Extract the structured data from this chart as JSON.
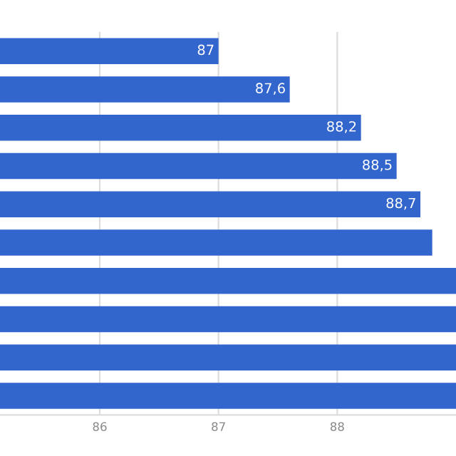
{
  "chart_data": {
    "type": "bar",
    "orientation": "horizontal",
    "categories": [
      null,
      null,
      null,
      null,
      null,
      null,
      null,
      null,
      null,
      null
    ],
    "values": [
      87,
      87.6,
      88.2,
      88.5,
      88.7,
      88.8,
      89,
      89,
      89,
      89
    ],
    "value_labels": [
      "87",
      "87,6",
      "88,2",
      "88,5",
      "88,7",
      null,
      null,
      null,
      null,
      null
    ],
    "color": "#3366cc",
    "xlim": [
      85.16,
      89
    ],
    "xticks": [
      86,
      87,
      88
    ],
    "grid": "x",
    "tick_labels": "x"
  }
}
